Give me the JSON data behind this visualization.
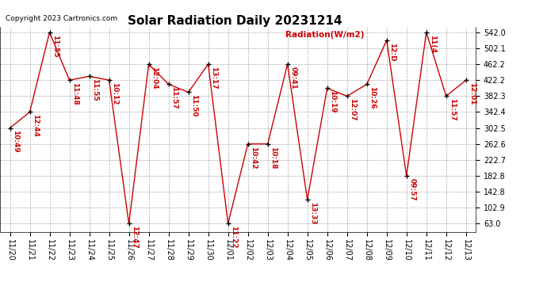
{
  "title": "Solar Radiation Daily 20231214",
  "copyright": "Copyright 2023 Cartronics.com",
  "legend_label": "Radiation(W/m2)",
  "dates": [
    "11/20",
    "11/21",
    "11/22",
    "11/23",
    "11/24",
    "11/25",
    "11/26",
    "11/27",
    "11/28",
    "11/29",
    "11/30",
    "12/01",
    "12/02",
    "12/03",
    "12/04",
    "12/05",
    "12/06",
    "12/07",
    "12/08",
    "12/09",
    "12/10",
    "12/11",
    "12/12",
    "12/13"
  ],
  "values": [
    302.5,
    342.4,
    542.0,
    422.2,
    432.0,
    422.2,
    63.0,
    462.2,
    412.0,
    392.0,
    462.2,
    63.0,
    262.6,
    262.6,
    462.2,
    122.9,
    402.0,
    382.3,
    412.0,
    522.0,
    182.8,
    542.0,
    382.3,
    422.2
  ],
  "point_labels": [
    "10:49",
    "12:44",
    "11:55",
    "11:48",
    "11:55",
    "10:12",
    "12:47",
    "12:04",
    "11:57",
    "11:50",
    "13:17",
    "11:22",
    "10:42",
    "10:18",
    "09:41",
    "13:33",
    "10:19",
    "12:07",
    "10:26",
    "12:D",
    "09:57",
    "11(4",
    "11:57",
    "12:01"
  ],
  "yticks": [
    63.0,
    102.9,
    142.8,
    182.8,
    222.7,
    262.6,
    302.5,
    342.4,
    382.3,
    422.2,
    462.2,
    502.1,
    542.0
  ],
  "ylim_min": 43.0,
  "ylim_max": 556.0,
  "line_color": "#cc0000",
  "marker_color": "#000000",
  "label_color": "#cc0000",
  "bg_color": "#ffffff",
  "grid_color": "#aaaaaa",
  "title_fontsize": 11,
  "tick_fontsize": 7,
  "annot_fontsize": 6.5,
  "legend_fontsize": 7.5,
  "copyright_fontsize": 6.5
}
